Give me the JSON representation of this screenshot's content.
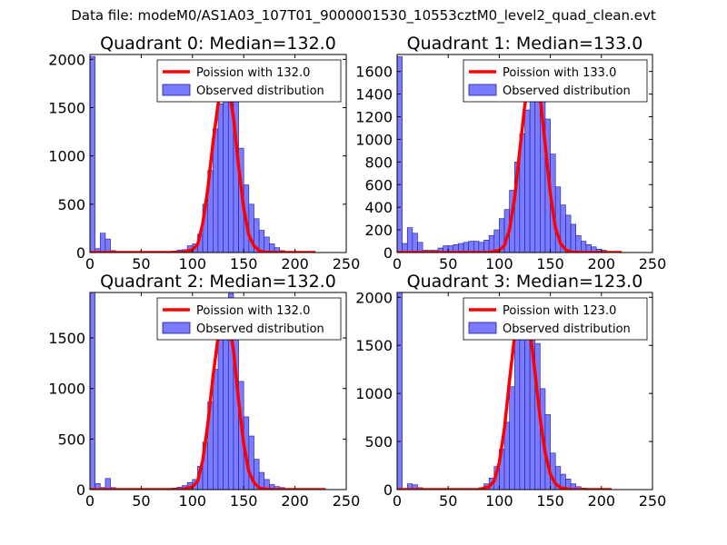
{
  "title": "Data file: modeM0/AS1A03_107T01_9000001530_10553cztM0_level2_quad_clean.evt",
  "colors": {
    "bars": "#7b7bff",
    "bar_edge": "#1a1a9a",
    "fit": "#ff0000"
  },
  "chart_data": [
    {
      "type": "bar",
      "title": "Quadrant 0: Median=132.0",
      "xlim": [
        0,
        250
      ],
      "ylim": [
        0,
        2050
      ],
      "xticks": [
        "0",
        "50",
        "100",
        "150",
        "200",
        "250"
      ],
      "yticks": [
        "0",
        "500",
        "1000",
        "1500",
        "2000"
      ],
      "ytick_values": [
        0,
        500,
        1000,
        1500,
        2000
      ],
      "legend": {
        "placement": "top-right",
        "line_label": "Poission with 132.0",
        "bar_label": "Observed distribution"
      },
      "bin_width": 5,
      "histogram": {
        "x": [
          0,
          5,
          10,
          15,
          20,
          25,
          30,
          35,
          40,
          45,
          50,
          55,
          60,
          65,
          70,
          75,
          80,
          85,
          90,
          95,
          100,
          105,
          110,
          115,
          120,
          125,
          130,
          135,
          140,
          145,
          150,
          155,
          160,
          165,
          170,
          175,
          180,
          185,
          190,
          195
        ],
        "counts": [
          2030,
          40,
          200,
          140,
          20,
          10,
          8,
          6,
          6,
          6,
          5,
          5,
          5,
          6,
          8,
          10,
          15,
          25,
          30,
          70,
          90,
          190,
          500,
          850,
          1280,
          1540,
          1860,
          1880,
          1590,
          1080,
          700,
          500,
          350,
          230,
          160,
          90,
          50,
          20,
          10,
          5
        ]
      },
      "poisson_fit": {
        "x": [
          0,
          90,
          100,
          105,
          110,
          115,
          120,
          125,
          130,
          132,
          135,
          140,
          145,
          150,
          155,
          160,
          165,
          170,
          180,
          220
        ],
        "y": [
          0,
          0,
          30,
          80,
          300,
          660,
          1140,
          1540,
          1760,
          1790,
          1730,
          1400,
          890,
          460,
          180,
          70,
          20,
          5,
          0,
          0
        ]
      }
    },
    {
      "type": "bar",
      "title": "Quadrant 1: Median=133.0",
      "xlim": [
        0,
        250
      ],
      "ylim": [
        0,
        1750
      ],
      "xticks": [
        "0",
        "50",
        "100",
        "150",
        "200",
        "250"
      ],
      "yticks": [
        "0",
        "200",
        "400",
        "600",
        "800",
        "1000",
        "1200",
        "1400",
        "1600"
      ],
      "ytick_values": [
        0,
        200,
        400,
        600,
        800,
        1000,
        1200,
        1400,
        1600
      ],
      "legend": {
        "placement": "top-right",
        "line_label": "Poission with 133.0",
        "bar_label": "Observed distribution"
      },
      "bin_width": 5,
      "histogram": {
        "x": [
          0,
          5,
          10,
          15,
          20,
          25,
          30,
          35,
          40,
          45,
          50,
          55,
          60,
          65,
          70,
          75,
          80,
          85,
          90,
          95,
          100,
          105,
          110,
          115,
          120,
          125,
          130,
          135,
          140,
          145,
          150,
          155,
          160,
          165,
          170,
          175,
          180,
          185,
          190,
          195,
          200,
          205,
          210
        ],
        "counts": [
          1730,
          80,
          220,
          170,
          90,
          20,
          20,
          20,
          40,
          60,
          60,
          70,
          80,
          90,
          100,
          100,
          90,
          110,
          150,
          200,
          300,
          380,
          550,
          800,
          1050,
          1260,
          1550,
          1660,
          1400,
          1180,
          870,
          580,
          420,
          330,
          250,
          150,
          100,
          70,
          50,
          30,
          20,
          10,
          5
        ]
      },
      "poisson_fit": {
        "x": [
          0,
          90,
          100,
          105,
          110,
          115,
          120,
          125,
          130,
          133,
          135,
          140,
          145,
          150,
          155,
          160,
          165,
          170,
          180,
          220
        ],
        "y": [
          0,
          0,
          20,
          60,
          200,
          480,
          900,
          1300,
          1580,
          1650,
          1620,
          1380,
          950,
          520,
          220,
          80,
          25,
          5,
          0,
          0
        ]
      }
    },
    {
      "type": "bar",
      "title": "Quadrant 2: Median=132.0",
      "xlim": [
        0,
        250
      ],
      "ylim": [
        0,
        1950
      ],
      "xticks": [
        "0",
        "50",
        "100",
        "150",
        "200",
        "250"
      ],
      "yticks": [
        "0",
        "500",
        "1000",
        "1500"
      ],
      "ytick_values": [
        0,
        500,
        1000,
        1500
      ],
      "legend": {
        "placement": "top-right",
        "line_label": "Poission with 132.0",
        "bar_label": "Observed distribution"
      },
      "bin_width": 5,
      "histogram": {
        "x": [
          0,
          5,
          10,
          15,
          20,
          25,
          30,
          35,
          40,
          45,
          50,
          55,
          60,
          65,
          70,
          75,
          80,
          85,
          90,
          95,
          100,
          105,
          110,
          115,
          120,
          125,
          130,
          135,
          140,
          145,
          150,
          155,
          160,
          165,
          170,
          175,
          180,
          185,
          190,
          195
        ],
        "counts": [
          1950,
          60,
          20,
          110,
          20,
          10,
          8,
          6,
          6,
          6,
          5,
          5,
          5,
          6,
          8,
          10,
          15,
          25,
          40,
          70,
          100,
          230,
          470,
          870,
          1190,
          1520,
          1880,
          1940,
          1590,
          1070,
          720,
          530,
          300,
          170,
          100,
          50,
          30,
          20,
          10,
          5
        ]
      },
      "poisson_fit": {
        "x": [
          0,
          90,
          100,
          105,
          110,
          115,
          120,
          125,
          130,
          132,
          135,
          140,
          145,
          150,
          155,
          160,
          165,
          170,
          180,
          230
        ],
        "y": [
          0,
          0,
          30,
          80,
          290,
          650,
          1120,
          1510,
          1720,
          1760,
          1700,
          1380,
          880,
          450,
          180,
          70,
          20,
          5,
          0,
          0
        ]
      }
    },
    {
      "type": "bar",
      "title": "Quadrant 3: Median=123.0",
      "xlim": [
        0,
        250
      ],
      "ylim": [
        0,
        2050
      ],
      "xticks": [
        "0",
        "50",
        "100",
        "150",
        "200",
        "250"
      ],
      "yticks": [
        "0",
        "500",
        "1000",
        "1500",
        "2000"
      ],
      "ytick_values": [
        0,
        500,
        1000,
        1500,
        2000
      ],
      "legend": {
        "placement": "top-right",
        "line_label": "Poission with 123.0",
        "bar_label": "Observed distribution"
      },
      "bin_width": 5,
      "histogram": {
        "x": [
          0,
          5,
          10,
          15,
          20,
          25,
          30,
          35,
          40,
          45,
          50,
          55,
          60,
          65,
          70,
          75,
          80,
          85,
          90,
          95,
          100,
          105,
          110,
          115,
          120,
          125,
          130,
          135,
          140,
          145,
          150,
          155,
          160,
          165,
          170,
          175,
          180,
          185,
          190
        ],
        "counts": [
          2050,
          10,
          60,
          50,
          20,
          10,
          8,
          6,
          6,
          6,
          5,
          5,
          5,
          6,
          8,
          10,
          20,
          60,
          120,
          240,
          420,
          700,
          1070,
          1570,
          1860,
          1980,
          1940,
          1520,
          1050,
          780,
          380,
          240,
          160,
          110,
          60,
          30,
          15,
          8,
          4
        ]
      },
      "poisson_fit": {
        "x": [
          0,
          80,
          90,
          95,
          100,
          105,
          110,
          115,
          120,
          123,
          125,
          130,
          135,
          140,
          145,
          150,
          155,
          160,
          170,
          210
        ],
        "y": [
          0,
          0,
          30,
          90,
          280,
          630,
          1130,
          1600,
          1900,
          1960,
          1930,
          1680,
          1220,
          740,
          380,
          160,
          60,
          20,
          0,
          0
        ]
      }
    }
  ]
}
